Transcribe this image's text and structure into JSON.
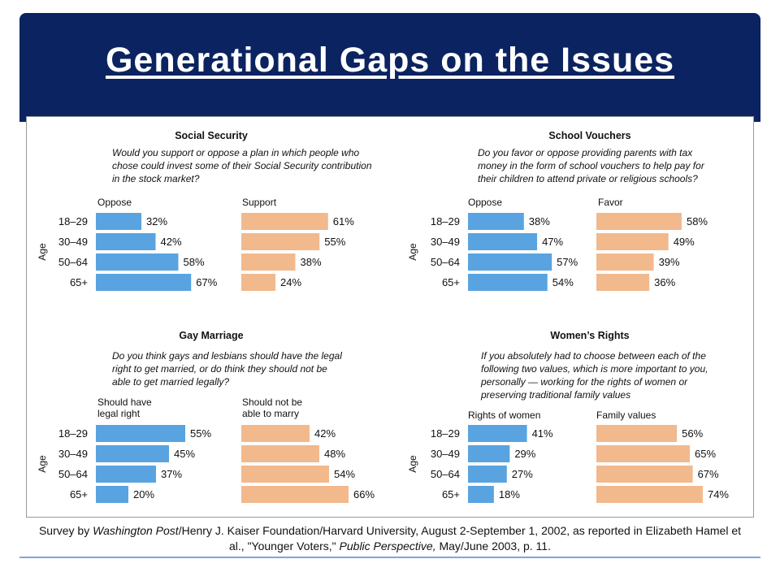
{
  "slide": {
    "title": "Generational Gaps on the Issues",
    "source": {
      "p1": "Survey by ",
      "i1": "Washington Post",
      "p2": "/Henry J. Kaiser Foundation/Harvard University, August 2-September 1, 2002, as reported in Elizabeth Hamel et al., \"Younger Voters,\" ",
      "i2": "Public Perspective,",
      "p3": " May/June 2003, p. 11."
    }
  },
  "colors": {
    "left_bar": "#59a3e0",
    "right_bar": "#f2b98d",
    "banner": "#0b2360"
  },
  "chart_data": [
    {
      "type": "bar",
      "title": "Social Security",
      "question": "Would you support or oppose a plan in which people who chose could invest some of their Social Security contribution in the stock market?",
      "ylabel": "Age",
      "categories": [
        "18–29",
        "30–49",
        "50–64",
        "65+"
      ],
      "series": [
        {
          "name": "Oppose",
          "values": [
            32,
            42,
            58,
            67
          ]
        },
        {
          "name": "Support",
          "values": [
            61,
            55,
            38,
            24
          ]
        }
      ]
    },
    {
      "type": "bar",
      "title": "School Vouchers",
      "question": "Do you favor or oppose providing parents with tax money in the form of school vouchers to help pay for their children to attend private or religious schools?",
      "ylabel": "Age",
      "categories": [
        "18–29",
        "30–49",
        "50–64",
        "65+"
      ],
      "series": [
        {
          "name": "Oppose",
          "values": [
            38,
            47,
            57,
            54
          ]
        },
        {
          "name": "Favor",
          "values": [
            58,
            49,
            39,
            36
          ]
        }
      ]
    },
    {
      "type": "bar",
      "title": "Gay Marriage",
      "question": "Do you think gays and lesbians should have the legal right to get married, or do think they should not be able to get married legally?",
      "ylabel": "Age",
      "categories": [
        "18–29",
        "30–49",
        "50–64",
        "65+"
      ],
      "series": [
        {
          "name": "Should have legal right",
          "values": [
            55,
            45,
            37,
            20
          ]
        },
        {
          "name": "Should not be able to marry",
          "values": [
            42,
            48,
            54,
            66
          ]
        }
      ]
    },
    {
      "type": "bar",
      "title": "Women’s Rights",
      "question": "If you absolutely had to choose between each of the following two values, which is more important to you, personally — working for the rights of women or preserving traditional family values",
      "ylabel": "Age",
      "categories": [
        "18–29",
        "30–49",
        "50–64",
        "65+"
      ],
      "series": [
        {
          "name": "Rights of women",
          "values": [
            41,
            29,
            27,
            18
          ]
        },
        {
          "name": "Family values",
          "values": [
            56,
            65,
            67,
            74
          ]
        }
      ]
    }
  ]
}
